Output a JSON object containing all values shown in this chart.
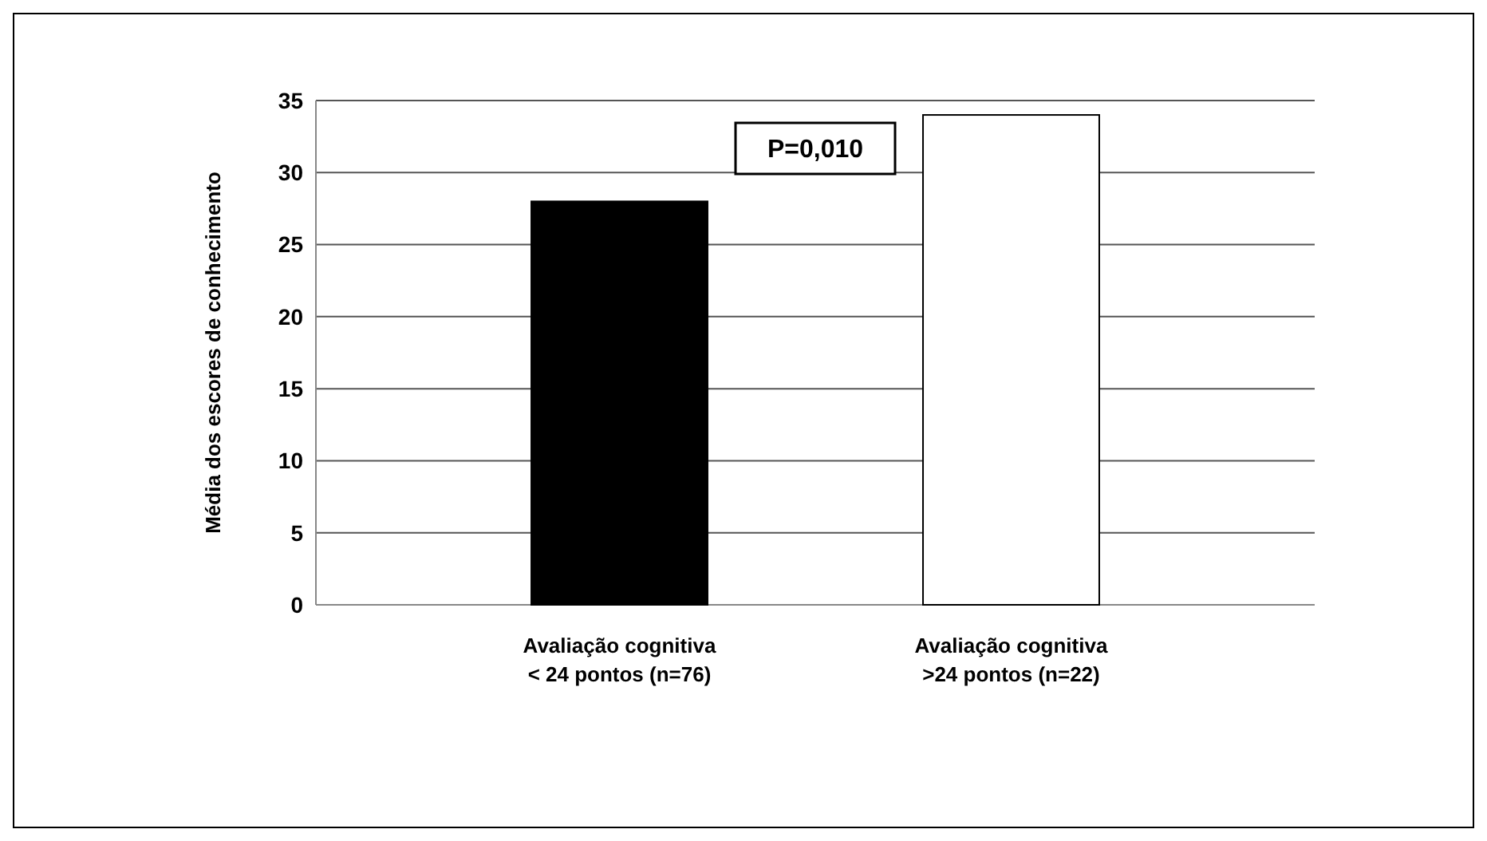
{
  "chart_data": {
    "type": "bar",
    "ylabel": "Média dos escores de conhecimento",
    "categories": [
      "Avaliação cognitiva\n< 24 pontos (n=76)",
      "Avaliação cognitiva\n>24 pontos (n=22)"
    ],
    "values": [
      28,
      34
    ],
    "colors": [
      "#000000",
      "#ffffff"
    ],
    "ylim": [
      0,
      35
    ],
    "yticks": [
      0,
      5,
      10,
      15,
      20,
      25,
      30,
      35
    ],
    "grid": "y",
    "annotations": [
      "P=0,010"
    ]
  }
}
